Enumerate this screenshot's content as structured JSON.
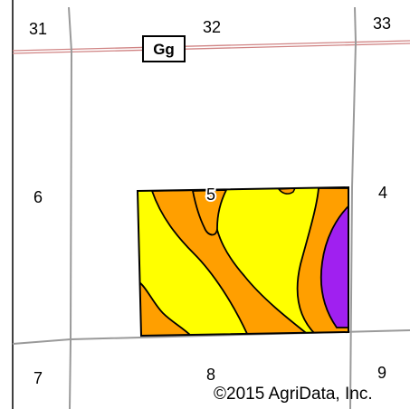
{
  "map": {
    "colors": {
      "background": "#ffffff",
      "section_line": "#9a9a9a",
      "county_line": "#d08484",
      "soil_yellow": "#ffff00",
      "soil_orange": "#ff9f00",
      "soil_purple": "#a020f0",
      "outline": "#000000"
    },
    "sections": {
      "s31": "31",
      "s32": "32",
      "s33": "33",
      "s6": "6",
      "s5": "5",
      "s4": "4",
      "s7": "7",
      "s8": "8",
      "s9": "9"
    },
    "soil_label": "Gg",
    "copyright": "©2015 AgriData, Inc."
  }
}
